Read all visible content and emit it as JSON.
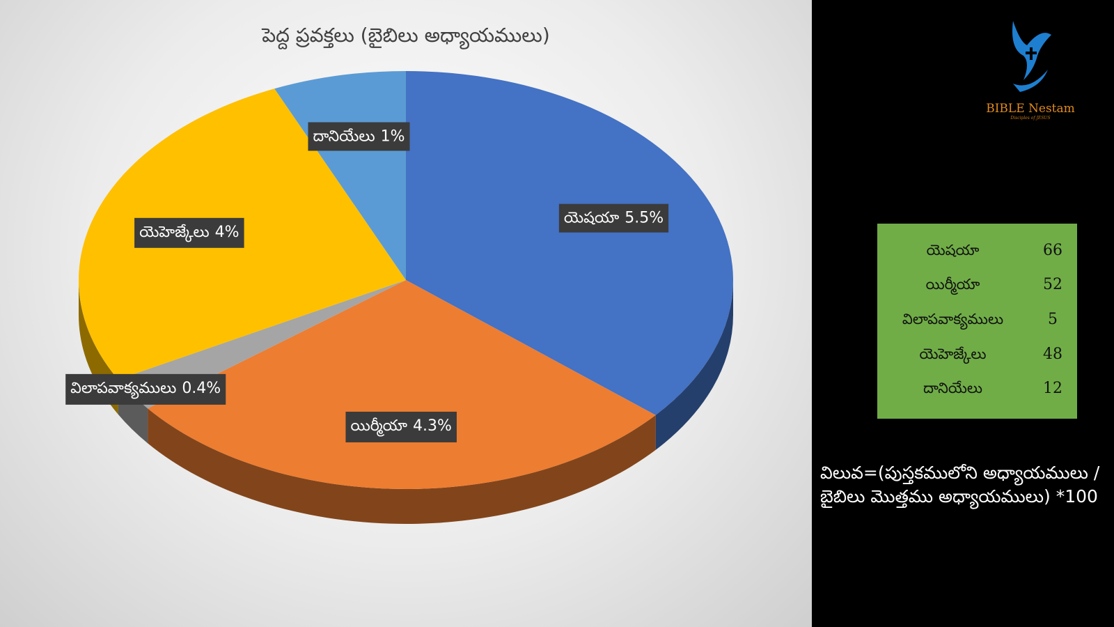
{
  "chart_data": {
    "type": "pie",
    "title": "పెద్ద ప్రవక్తలు (బైబిలు అధ్యాయములు)",
    "categories": [
      "యెషయా",
      "యిర్మీయా",
      "విలాపవాక్యములు",
      "యెహెజ్కేలు",
      "దానియేలు"
    ],
    "values": [
      5.5,
      4.3,
      0.4,
      4,
      1
    ],
    "value_labels": [
      "5.5%",
      "4.3%",
      "0.4%",
      "4%",
      "1%"
    ],
    "colors": [
      "#4472c4",
      "#ed7d31",
      "#a5a5a5",
      "#ffc000",
      "#5b9bd5"
    ]
  },
  "table": {
    "rows": [
      [
        "యెషయా",
        66
      ],
      [
        "యిర్మీయా",
        52
      ],
      [
        "విలాపవాక్యములు",
        5
      ],
      [
        "యెహెజ్కేలు",
        48
      ],
      [
        "దానియేలు",
        12
      ]
    ]
  },
  "note": "విలువ=(పుస్తకములోని అధ్యాయములు / బైబిలు మొత్తము అధ్యాయములు) *100",
  "logo": {
    "name": "BIBLE Nestam",
    "tagline": "Disciples of JESUS"
  }
}
